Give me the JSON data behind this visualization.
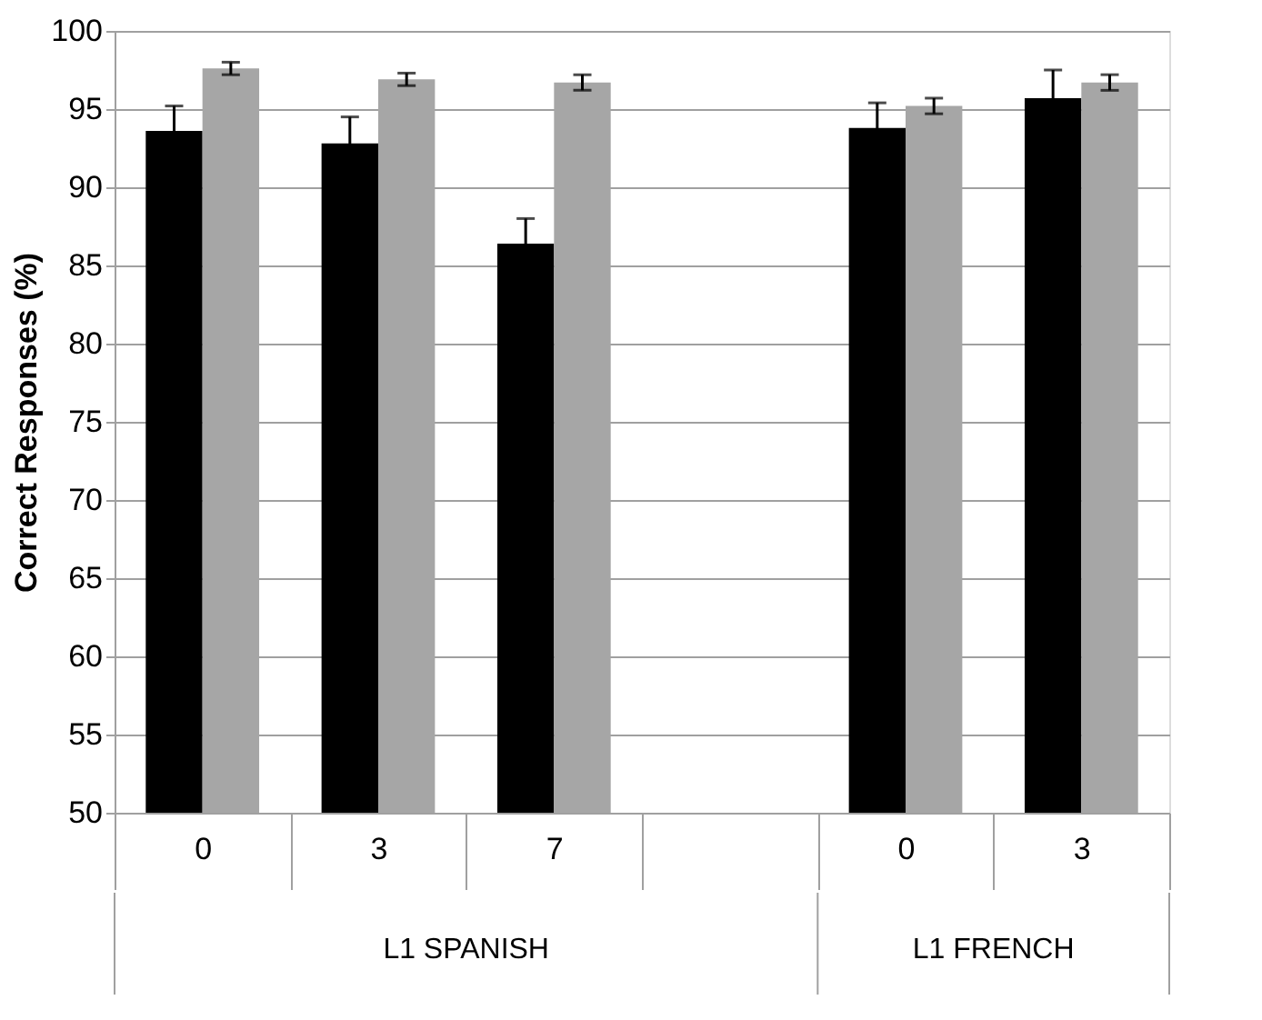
{
  "chart_data": {
    "type": "bar",
    "ylabel": "Correct Responses (%)",
    "categories": [
      "0",
      "3",
      "7",
      null,
      "0",
      "3"
    ],
    "series": [
      {
        "color": "#000000",
        "values": [
          93.6,
          92.8,
          86.4,
          null,
          93.8,
          95.7
        ],
        "errors": [
          1.6,
          1.7,
          1.6,
          null,
          1.6,
          1.8
        ]
      },
      {
        "color": "#a6a6a6",
        "values": [
          97.6,
          96.9,
          96.7,
          null,
          95.2,
          96.7
        ],
        "errors": [
          0.4,
          0.4,
          0.5,
          null,
          0.5,
          0.5
        ]
      }
    ],
    "ylim": [
      50,
      100
    ],
    "yticks": [
      50,
      55,
      60,
      65,
      70,
      75,
      80,
      85,
      90,
      95,
      100
    ],
    "grid": "y",
    "legend": false,
    "annotations": [
      "L1 SPANISH",
      "L1 FRENCH"
    ]
  }
}
